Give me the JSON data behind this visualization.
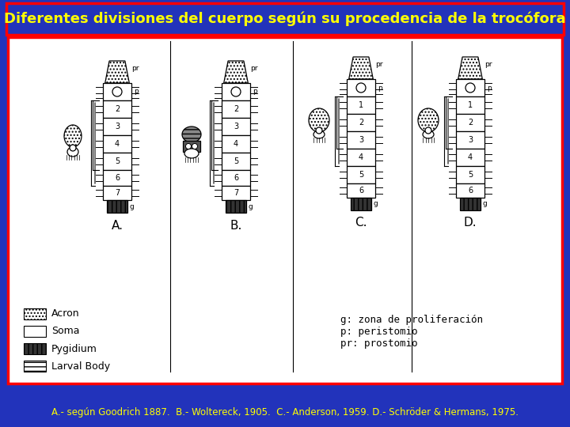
{
  "bg_color": "#2233bb",
  "title_text": "Diferentes divisiones del cuerpo según su procedencia de la trocófora",
  "title_color": "#ffff00",
  "title_bg": "#2233bb",
  "title_border_color": "#ff0000",
  "content_bg": "#ffffff",
  "content_border_color": "#ff0000",
  "annotation_text": "g: zona de proliferación\np: peristomio\npr: prostomio",
  "annotation_color": "#000000",
  "bottom_text": "A.- según Goodrich 1887.  B.- Woltereck, 1905.  C.- Anderson, 1959. D.- Schröder & Hermans, 1975.",
  "bottom_color": "#ffff00",
  "fig_width": 7.2,
  "fig_height": 5.4,
  "dpi": 100
}
